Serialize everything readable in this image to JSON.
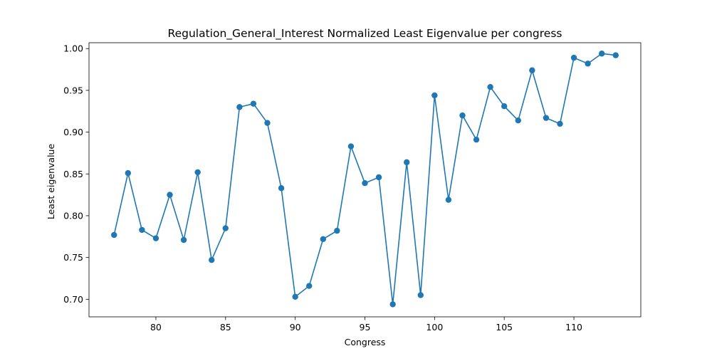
{
  "chart_data": {
    "type": "line",
    "title": "Regulation_General_Interest Normalized Least Eigenvalue per congress",
    "xlabel": "Congress",
    "ylabel": "Least eigenvalue",
    "xlim": [
      75.2,
      114.8
    ],
    "ylim": [
      0.679,
      1.007
    ],
    "xticks": [
      80,
      85,
      90,
      95,
      100,
      105,
      110
    ],
    "yticks": [
      0.7,
      0.75,
      0.8,
      0.85,
      0.9,
      0.95,
      1.0
    ],
    "grid": false,
    "marker": "circle",
    "color": "#1f77b4",
    "series": [
      {
        "x": [
          77,
          78,
          79,
          80,
          81,
          82,
          83,
          84,
          85,
          86,
          87,
          88,
          89,
          90,
          91,
          92,
          93,
          94,
          95,
          96,
          97,
          98,
          99,
          100,
          101,
          102,
          103,
          104,
          105,
          106,
          107,
          108,
          109,
          110,
          111,
          112,
          113
        ],
        "values": [
          0.777,
          0.851,
          0.783,
          0.773,
          0.825,
          0.771,
          0.852,
          0.747,
          0.785,
          0.93,
          0.934,
          0.911,
          0.833,
          0.703,
          0.716,
          0.772,
          0.782,
          0.883,
          0.839,
          0.846,
          0.694,
          0.864,
          0.705,
          0.944,
          0.819,
          0.92,
          0.891,
          0.954,
          0.931,
          0.914,
          0.974,
          0.917,
          0.91,
          0.989,
          0.982,
          0.994,
          0.992
        ]
      }
    ]
  }
}
